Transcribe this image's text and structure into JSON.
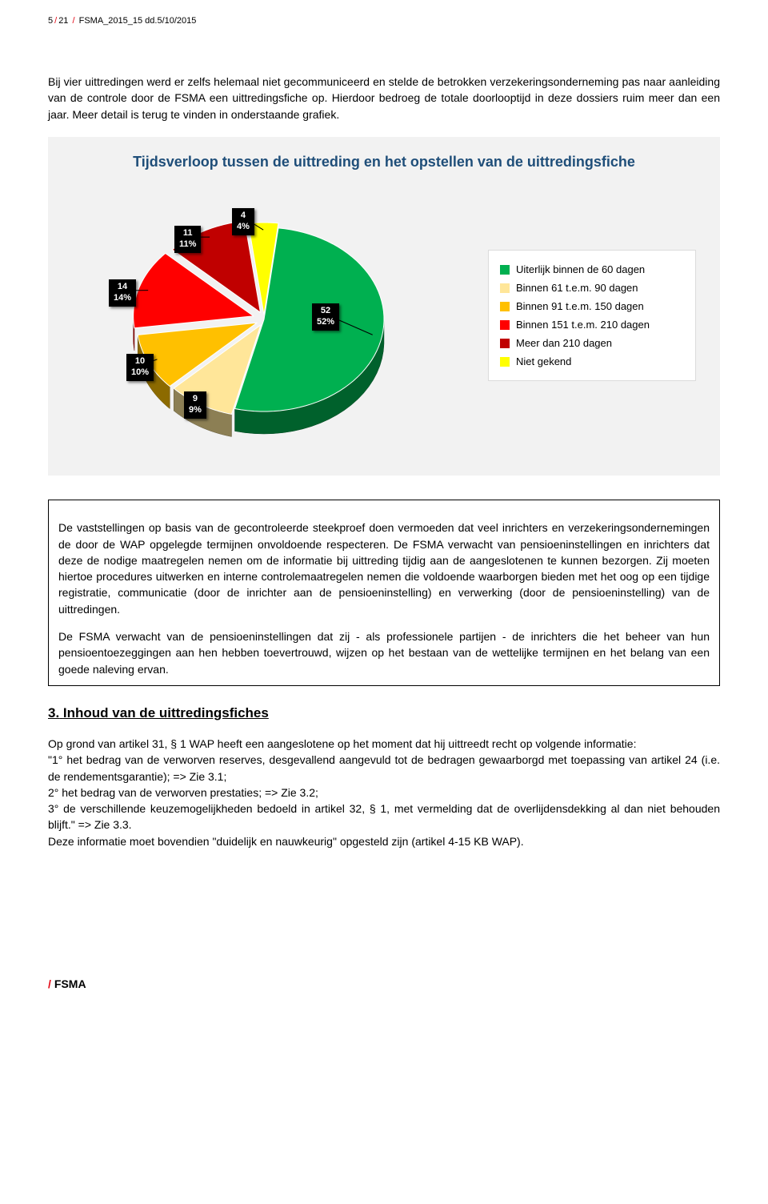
{
  "header": {
    "page_cur": "5",
    "page_total": "21",
    "doc_ref": "FSMA_2015_15 dd.5/10/2015"
  },
  "intro_para": "Bij vier uittredingen werd er zelfs helemaal niet gecommuniceerd en stelde de betrokken verzekeringsonderneming pas naar aanleiding van de controle door de FSMA een uittredingsfiche op. Hierdoor bedroeg de totale doorlooptijd in deze dossiers ruim meer dan een jaar. Meer detail is terug te vinden in onderstaande grafiek.",
  "chart": {
    "type": "pie",
    "title": "Tijdsverloop tussen de uittreding en het opstellen van de uittredingsfiche",
    "background_color": "#f2f2f2",
    "title_color": "#1f4e79",
    "title_fontsize": 18,
    "slices": [
      {
        "label": "Uiterlijk binnen de 60 dagen",
        "value": 52,
        "percent": "52%",
        "color": "#00b050",
        "callout": "52\n52%"
      },
      {
        "label": "Binnen 61 t.e.m. 90 dagen",
        "value": 9,
        "percent": "9%",
        "color": "#ffe699",
        "callout": "9\n9%"
      },
      {
        "label": "Binnen 91 t.e.m. 150 dagen",
        "value": 10,
        "percent": "10%",
        "color": "#ffc000",
        "callout": "10\n10%"
      },
      {
        "label": "Binnen 151 t.e.m. 210 dagen",
        "value": 14,
        "percent": "14%",
        "color": "#ff0000",
        "callout": "14\n14%"
      },
      {
        "label": "Meer dan 210 dagen",
        "value": 11,
        "percent": "11%",
        "color": "#c00000",
        "callout": "11\n11%"
      },
      {
        "label": "Niet gekend",
        "value": 4,
        "percent": "4%",
        "color": "#ffff00",
        "callout": "4\n4%"
      }
    ],
    "callout_bg": "#000000",
    "callout_text_color": "#ffffff",
    "legend_bg": "#ffffff",
    "legend_border": "#dcdcdc"
  },
  "box_paras": [
    "De vaststellingen op basis van de gecontroleerde steekproef doen vermoeden dat veel inrichters en verzekeringsondernemingen de door de WAP opgelegde termijnen onvoldoende respecteren. De FSMA verwacht van pensioeninstellingen en inrichters dat deze de nodige maatregelen nemen om de informatie bij uittreding tijdig aan de aangeslotenen te kunnen bezorgen. Zij moeten hiertoe procedures uitwerken en interne controlemaatregelen nemen die voldoende waarborgen bieden met het oog op een tijdige registratie, communicatie (door de inrichter aan de pensioeninstelling) en verwerking (door de pensioeninstelling) van de uittredingen.",
    "De FSMA verwacht van de pensioeninstellingen dat zij - als professionele partijen - de inrichters die het beheer van hun pensioentoezeggingen aan hen hebben toevertrouwd, wijzen op het bestaan van de wettelijke termijnen en het belang van een goede naleving ervan."
  ],
  "section3": {
    "number": "3.",
    "title": "Inhoud van de uittredingsfiches",
    "body": "Op grond van artikel 31, § 1 WAP heeft een aangeslotene op het moment dat hij uittreedt recht op volgende informatie:\n\"1° het bedrag van de verworven reserves, desgevallend aangevuld tot de bedragen gewaarborgd met toepassing van artikel 24 (i.e. de rendementsgarantie); => Zie 3.1;\n2° het bedrag van de verworven prestaties; => Zie 3.2;\n3° de verschillende keuzemogelijkheden bedoeld in artikel 32, § 1, met vermelding dat de overlijdensdekking al dan niet behouden blijft.\" => Zie 3.3.\nDeze informatie moet bovendien \"duidelijk en nauwkeurig\" opgesteld zijn (artikel 4-15 KB WAP)."
  },
  "footer": {
    "org": "FSMA"
  }
}
